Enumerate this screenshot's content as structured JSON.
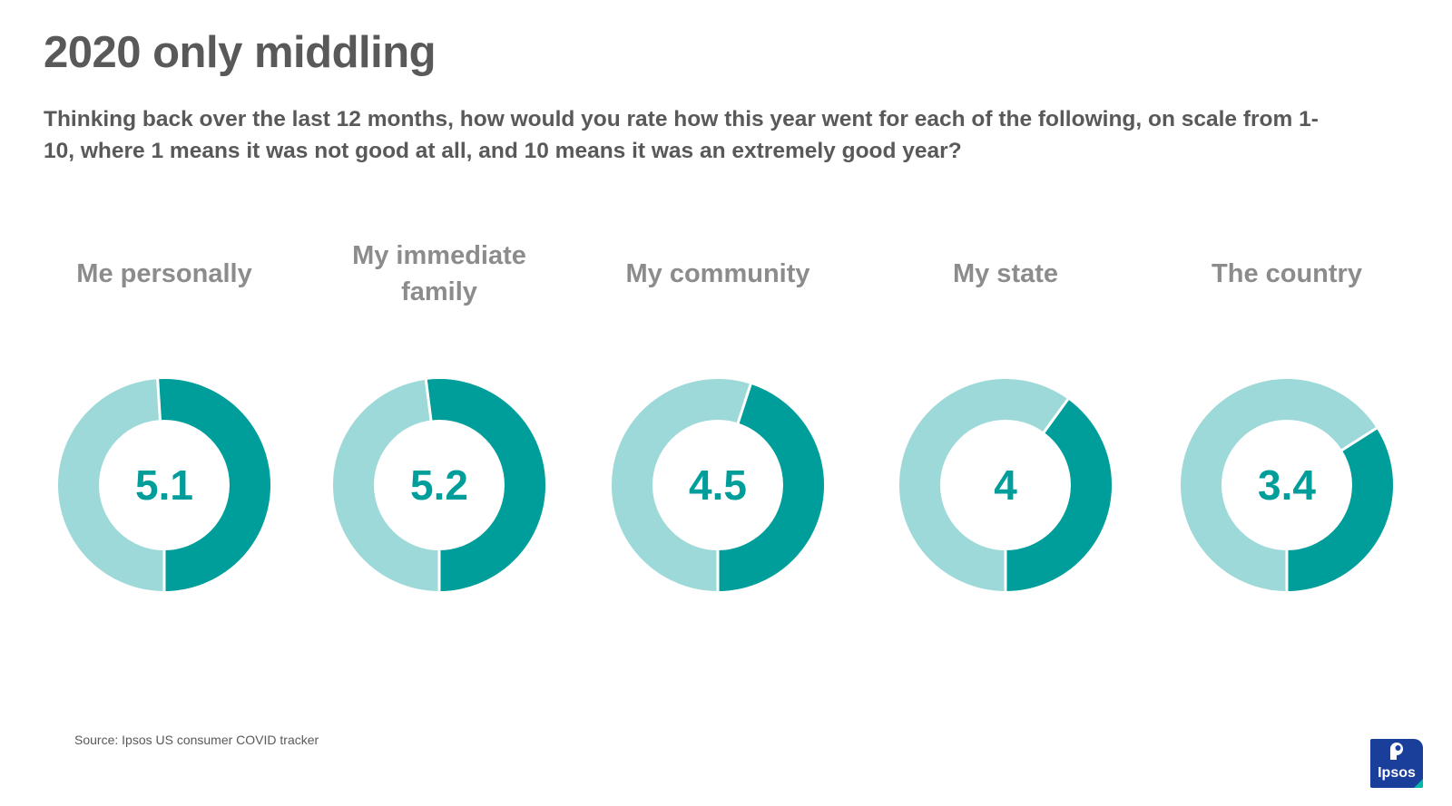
{
  "title": "2020 only middling",
  "subtitle": "Thinking back over the last 12 months, how would you rate how this year went for each of the following, on scale from 1-10, where 1 means it was not good at all, and 10 means it was an extremely good year?",
  "source": "Source: Ipsos US consumer COVID tracker",
  "logo": {
    "text": "Ipsos",
    "bg_color": "#1a3f9b"
  },
  "colors": {
    "filled": "#009e9a",
    "remaining": "#9dd9d8",
    "value_text": "#009e9a"
  },
  "chart_data": {
    "type": "donut",
    "scale": [
      0,
      10
    ],
    "categories": [
      "Me personally",
      "My immediate family",
      "My community",
      "My state",
      "The country"
    ],
    "label_lines": [
      [
        "Me personally"
      ],
      [
        "My immediate",
        "family"
      ],
      [
        "My community"
      ],
      [
        "My state"
      ],
      [
        "The country"
      ]
    ],
    "values": [
      5.1,
      5.2,
      4.5,
      4,
      3.4
    ],
    "value_labels": [
      "5.1",
      "5.2",
      "4.5",
      "4",
      "3.4"
    ]
  }
}
